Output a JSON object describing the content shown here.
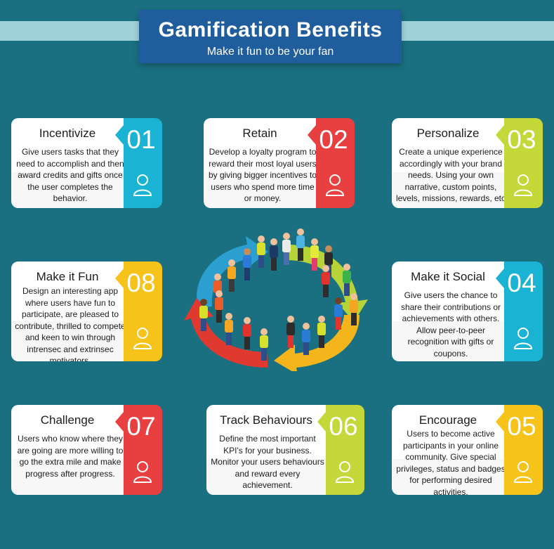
{
  "header": {
    "title": "Gamification Benefits",
    "subtitle": "Make it fun to be your fan"
  },
  "cards": [
    {
      "number": "01",
      "title": "Incentivize",
      "body": "Give users tasks that they need to accomplish and then award credits and gifts once the user completes the behavior.",
      "accent": "#1ab3d4"
    },
    {
      "number": "02",
      "title": "Retain",
      "body": "Develop a loyalty program to reward their most loyal users by giving bigger incentives to users who spend more time or money.",
      "accent": "#e84040"
    },
    {
      "number": "03",
      "title": "Personalize",
      "body": "Create a unique experience accordingly with your brand needs. Using your own narrative, custom points, levels, missions, rewards, etc",
      "accent": "#c4d83a"
    },
    {
      "number": "04",
      "title": "Make it Social",
      "body": "Give users the chance to share their contributions or achievements with others. Allow peer-to-peer recognition with gifts or coupons.",
      "accent": "#1ab3d4"
    },
    {
      "number": "05",
      "title": "Encourage",
      "body": "Users to become active participants in your online community. Give special privileges, status and badges for performing desired activities.",
      "accent": "#f6c31a"
    },
    {
      "number": "06",
      "title": "Track Behaviours",
      "body": "Define the most important KPI's for your business. Monitor your users behaviours and reward every achievement.",
      "accent": "#c4d83a"
    },
    {
      "number": "07",
      "title": "Challenge",
      "body": "Users who know where they are going are more willing to go the extra mile and make progress after progress.",
      "accent": "#e84040"
    },
    {
      "number": "08",
      "title": "Make it Fun",
      "body": "Design an interesting app where users have fun to participate,  are pleased to contribute, thrilled to compete and keen to win through intrensec and extrinsec motivators.",
      "accent": "#f6c31a"
    }
  ],
  "icons": {
    "card_icon": "user-icon",
    "center_graphic": "people-on-cycle-arrows"
  }
}
